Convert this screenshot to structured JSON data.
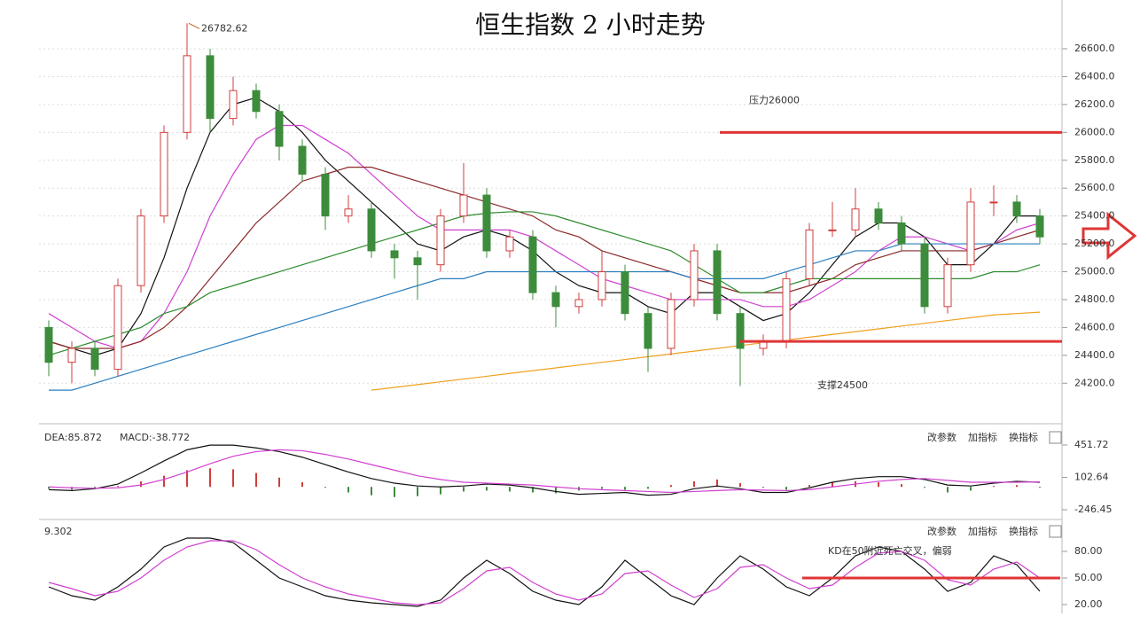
{
  "chart_data": [
    {
      "type": "candlestick",
      "title": "恒生指数 2 小时走势",
      "high_label": "26782.62",
      "grid": true,
      "up_color": "#d23c3c",
      "down_color": "#3c8c3c",
      "ylim": [
        23960,
        26950
      ],
      "yticks": [
        {
          "value": 24200,
          "label": "24200.0"
        },
        {
          "value": 24400,
          "label": "24400.0"
        },
        {
          "value": 24600,
          "label": "24600.0"
        },
        {
          "value": 24800,
          "label": "24800.0"
        },
        {
          "value": 25000,
          "label": "25000.0"
        },
        {
          "value": 25200,
          "label": "25200.0"
        },
        {
          "value": 25400,
          "label": "25400.0"
        },
        {
          "value": 25600,
          "label": "25600.0"
        },
        {
          "value": 25800,
          "label": "25800.0"
        },
        {
          "value": 26000,
          "label": "26000.0"
        },
        {
          "value": 26200,
          "label": "26200.0"
        },
        {
          "value": 26400,
          "label": "26400.0"
        },
        {
          "value": 26600,
          "label": "26600.0"
        }
      ],
      "annotations": [
        {
          "text": "压力26000",
          "value": 26000,
          "color": "#e03535"
        },
        {
          "text": "支撑24500",
          "value": 24500,
          "color": "#e03535"
        }
      ],
      "ohlc": [
        [
          24600,
          24650,
          24250,
          24350
        ],
        [
          24350,
          24500,
          24200,
          24450
        ],
        [
          24450,
          24500,
          24250,
          24300
        ],
        [
          24300,
          24950,
          24250,
          24900
        ],
        [
          24900,
          25450,
          24850,
          25400
        ],
        [
          25400,
          26050,
          25350,
          26000
        ],
        [
          26000,
          26782.62,
          25950,
          26550
        ],
        [
          26550,
          26600,
          26000,
          26100
        ],
        [
          26100,
          26400,
          26050,
          26300
        ],
        [
          26300,
          26350,
          26100,
          26150
        ],
        [
          26150,
          26200,
          25800,
          25900
        ],
        [
          25900,
          25950,
          25650,
          25700
        ],
        [
          25700,
          25750,
          25300,
          25400
        ],
        [
          25400,
          25550,
          25350,
          25450
        ],
        [
          25450,
          25500,
          25100,
          25150
        ],
        [
          25150,
          25200,
          24950,
          25100
        ],
        [
          25100,
          25150,
          24800,
          25050
        ],
        [
          25050,
          25450,
          25000,
          25400
        ],
        [
          25400,
          25780,
          25350,
          25550
        ],
        [
          25550,
          25600,
          25100,
          25150
        ],
        [
          25150,
          25300,
          25100,
          25250
        ],
        [
          25250,
          25300,
          24800,
          24850
        ],
        [
          24850,
          24900,
          24600,
          24750
        ],
        [
          24750,
          24850,
          24700,
          24800
        ],
        [
          24800,
          25150,
          24750,
          25000
        ],
        [
          25000,
          25050,
          24650,
          24700
        ],
        [
          24700,
          24750,
          24280,
          24450
        ],
        [
          24450,
          24850,
          24400,
          24800
        ],
        [
          24800,
          25200,
          24750,
          25150
        ],
        [
          25150,
          25200,
          24650,
          24700
        ],
        [
          24700,
          24750,
          24180,
          24450
        ],
        [
          24450,
          24550,
          24400,
          24500
        ],
        [
          24500,
          25000,
          24450,
          24950
        ],
        [
          24950,
          25350,
          24900,
          25300
        ],
        [
          25300,
          25500,
          25250,
          25300
        ],
        [
          25300,
          25600,
          25250,
          25450
        ],
        [
          25450,
          25500,
          25300,
          25350
        ],
        [
          25350,
          25400,
          25150,
          25200
        ],
        [
          25200,
          25250,
          24700,
          24750
        ],
        [
          24750,
          25100,
          24700,
          25050
        ],
        [
          25050,
          25600,
          25000,
          25500
        ],
        [
          25500,
          25620,
          25400,
          25500
        ],
        [
          25500,
          25550,
          25350,
          25400
        ],
        [
          25400,
          25450,
          25200,
          25250
        ]
      ],
      "series": [
        {
          "color": "#111111",
          "values": [
            24500,
            24450,
            24400,
            24450,
            24700,
            25100,
            25600,
            26000,
            26200,
            26250,
            26150,
            26000,
            25800,
            25650,
            25500,
            25350,
            25200,
            25150,
            25250,
            25300,
            25250,
            25150,
            25000,
            24900,
            24850,
            24850,
            24750,
            24700,
            24850,
            24850,
            24750,
            24650,
            24700,
            24850,
            25050,
            25250,
            25350,
            25350,
            25250,
            25050,
            25050,
            25200,
            25400,
            25400
          ]
        },
        {
          "color": "#d040d0",
          "values": [
            24700,
            24600,
            24500,
            24450,
            24500,
            24700,
            25000,
            25400,
            25700,
            25950,
            26050,
            26050,
            25950,
            25850,
            25700,
            25550,
            25400,
            25300,
            25300,
            25300,
            25300,
            25250,
            25150,
            25050,
            24950,
            24900,
            24850,
            24800,
            24800,
            24800,
            24800,
            24750,
            24750,
            24800,
            24900,
            25000,
            25150,
            25250,
            25250,
            25200,
            25150,
            25200,
            25300,
            25350
          ]
        },
        {
          "color": "#8b2a2a",
          "values": [
            24500,
            24450,
            24450,
            24450,
            24500,
            24600,
            24750,
            24950,
            25150,
            25350,
            25500,
            25650,
            25700,
            25750,
            25750,
            25700,
            25650,
            25600,
            25550,
            25500,
            25450,
            25400,
            25300,
            25250,
            25150,
            25100,
            25050,
            25000,
            24950,
            24900,
            24850,
            24850,
            24850,
            24900,
            24950,
            25050,
            25100,
            25150,
            25150,
            25150,
            25150,
            25200,
            25250,
            25300
          ]
        },
        {
          "color": "#2e8b2e",
          "values": [
            24400,
            24450,
            24500,
            24550,
            24600,
            24700,
            24750,
            24850,
            24900,
            24950,
            25000,
            25050,
            25100,
            25150,
            25200,
            25250,
            25300,
            25350,
            25400,
            25420,
            25430,
            25430,
            25400,
            25350,
            25300,
            25250,
            25200,
            25150,
            25050,
            24950,
            24850,
            24850,
            24900,
            24950,
            24950,
            24950,
            24950,
            24950,
            24950,
            24950,
            24950,
            25000,
            25000,
            25050
          ]
        },
        {
          "color": "#2a7fc0",
          "values": [
            24150,
            24150,
            24200,
            24250,
            24300,
            24350,
            24400,
            24450,
            24500,
            24550,
            24600,
            24650,
            24700,
            24750,
            24800,
            24850,
            24900,
            24950,
            24950,
            25000,
            25000,
            25000,
            25000,
            25000,
            25000,
            25000,
            25000,
            25000,
            24950,
            24950,
            24950,
            24950,
            25000,
            25050,
            25100,
            25150,
            25150,
            25200,
            25200,
            25200,
            25200,
            25200,
            25200,
            25200
          ]
        },
        {
          "color": "#f0a020",
          "values": [
            null,
            null,
            null,
            null,
            null,
            null,
            null,
            null,
            null,
            null,
            null,
            null,
            null,
            null,
            24150,
            24170,
            24190,
            24210,
            24230,
            24250,
            24270,
            24290,
            24310,
            24330,
            24350,
            24370,
            24390,
            24410,
            24430,
            24450,
            24470,
            24490,
            24510,
            24530,
            24550,
            24570,
            24590,
            24610,
            24630,
            24650,
            24670,
            24690,
            24700,
            24710
          ]
        }
      ]
    },
    {
      "type": "bar",
      "legend_items": [
        "DEA:85.872",
        "MACD:-38.772"
      ],
      "toolbar": [
        "改参数",
        "加指标",
        "换指标"
      ],
      "up_color": "#d23c3c",
      "down_color": "#3c8c3c",
      "ylim": [
        -342,
        566
      ],
      "yticks": [
        451.72,
        102.64,
        -246.45
      ],
      "values": [
        -20,
        -30,
        -20,
        10,
        60,
        120,
        180,
        200,
        190,
        150,
        100,
        50,
        -10,
        -60,
        -90,
        -110,
        -100,
        -80,
        -50,
        -40,
        -50,
        -60,
        -70,
        -40,
        -20,
        -30,
        -20,
        20,
        60,
        80,
        40,
        -10,
        -30,
        20,
        50,
        60,
        50,
        30,
        -10,
        -60,
        -40,
        10,
        20,
        -10
      ],
      "series": [
        {
          "color": "#111111",
          "values": [
            -30,
            -40,
            -20,
            30,
            150,
            280,
            400,
            450,
            450,
            420,
            380,
            320,
            240,
            160,
            90,
            40,
            10,
            0,
            10,
            30,
            20,
            -10,
            -50,
            -80,
            -70,
            -60,
            -90,
            -80,
            -20,
            10,
            -20,
            -60,
            -60,
            -10,
            50,
            90,
            110,
            110,
            80,
            20,
            10,
            40,
            60,
            50
          ]
        },
        {
          "color": "#d040d0",
          "values": [
            0,
            -10,
            -15,
            -10,
            20,
            80,
            160,
            250,
            330,
            380,
            400,
            390,
            350,
            300,
            240,
            180,
            120,
            80,
            50,
            40,
            30,
            20,
            0,
            -20,
            -30,
            -40,
            -50,
            -60,
            -50,
            -40,
            -30,
            -35,
            -40,
            -30,
            0,
            30,
            60,
            80,
            90,
            70,
            50,
            50,
            50,
            55
          ]
        }
      ]
    },
    {
      "type": "line",
      "legend_items": [
        "9.302"
      ],
      "toolbar": [
        "改参数",
        "加指标",
        "换指标"
      ],
      "annotation": {
        "text": "KD在50附近死亡交叉，偏弱",
        "value": 50,
        "color": "#e03535"
      },
      "ylim": [
        10,
        112
      ],
      "yticks": [
        {
          "value": 80,
          "label": "80.00"
        },
        {
          "value": 50,
          "label": "50.00"
        },
        {
          "value": 20,
          "label": "20.00"
        }
      ],
      "series": [
        {
          "color": "#111111",
          "values": [
            40,
            30,
            25,
            40,
            60,
            85,
            95,
            95,
            90,
            70,
            50,
            40,
            30,
            25,
            22,
            20,
            18,
            25,
            50,
            70,
            55,
            35,
            25,
            20,
            40,
            70,
            50,
            30,
            20,
            50,
            75,
            60,
            40,
            30,
            50,
            75,
            85,
            80,
            60,
            35,
            45,
            75,
            65,
            35
          ]
        },
        {
          "color": "#d040d0",
          "values": [
            45,
            38,
            30,
            35,
            50,
            70,
            85,
            92,
            92,
            82,
            65,
            50,
            40,
            32,
            27,
            22,
            20,
            22,
            38,
            58,
            62,
            45,
            32,
            25,
            32,
            55,
            58,
            42,
            28,
            38,
            62,
            65,
            50,
            38,
            42,
            62,
            78,
            80,
            70,
            48,
            42,
            60,
            68,
            50
          ]
        }
      ]
    }
  ]
}
